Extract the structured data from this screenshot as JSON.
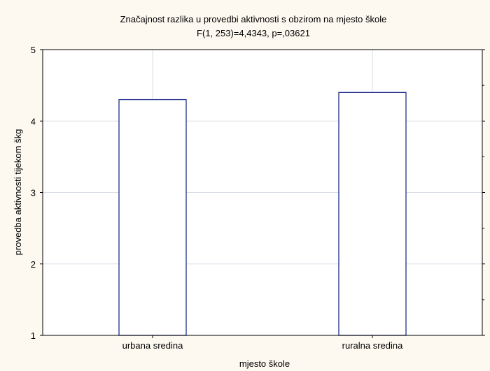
{
  "chart_data": {
    "type": "bar",
    "title": "Značajnost razlika u provedbi aktivnosti s obzirom na mjesto škole",
    "subtitle": "F(1, 253)=4,4343, p=,03621",
    "xlabel": "mjesto škole",
    "ylabel": "provedba aktivnosti tijekom škg",
    "categories": [
      "urbana sredina",
      "ruralna sredina"
    ],
    "values": [
      4.3,
      4.4
    ],
    "ylim": [
      1,
      5
    ],
    "yticks": [
      "1",
      "2",
      "3",
      "4",
      "5"
    ],
    "grid": true,
    "legend": "none",
    "colors": {
      "background": "#fdf9f0",
      "plot_area": "#ffffff",
      "bar_stroke": "#1f2f8a",
      "grid": "#d9dde6",
      "axis": "#000000"
    }
  }
}
